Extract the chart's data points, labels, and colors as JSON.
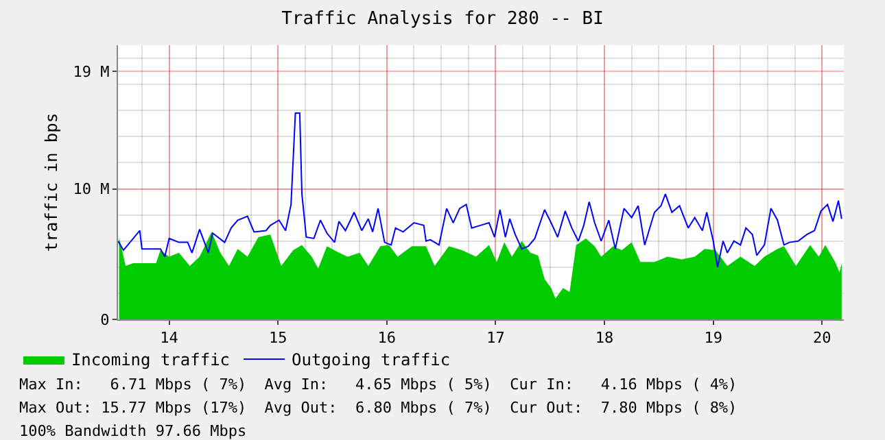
{
  "chart_data": {
    "type": "line",
    "title": "Traffic Analysis for 280 -- BI",
    "ylabel": "traffic in bps",
    "series": [
      {
        "name": "Incoming traffic",
        "type": "area",
        "color": "#00cc00",
        "x": [
          13.54,
          13.6,
          13.67,
          13.88,
          13.92,
          14.0,
          14.09,
          14.19,
          14.28,
          14.39,
          14.47,
          14.55,
          14.63,
          14.72,
          14.82,
          14.93,
          15.03,
          15.14,
          15.22,
          15.31,
          15.37,
          15.45,
          15.56,
          15.64,
          15.75,
          15.83,
          15.94,
          16.02,
          16.1,
          16.23,
          16.36,
          16.44,
          16.57,
          16.69,
          16.82,
          16.94,
          17.01,
          17.08,
          17.15,
          17.24,
          17.32,
          17.39,
          17.45,
          17.51,
          17.55,
          17.62,
          17.68,
          17.74,
          17.83,
          17.91,
          17.97,
          18.08,
          18.16,
          18.25,
          18.33,
          18.46,
          18.58,
          18.71,
          18.83,
          18.92,
          19.02,
          19.13,
          19.25,
          19.38,
          19.47,
          19.59,
          19.65,
          19.76,
          19.89,
          19.97,
          20.03,
          20.12,
          20.16,
          20.18
        ],
        "values": [
          6.3,
          4.1,
          4.3,
          4.3,
          5.3,
          4.8,
          5.1,
          4.1,
          4.8,
          6.7,
          5.1,
          4.1,
          5.4,
          4.8,
          6.3,
          6.5,
          4.1,
          5.3,
          5.7,
          4.8,
          3.9,
          5.6,
          5.1,
          4.8,
          5.1,
          4.1,
          5.6,
          5.7,
          4.8,
          5.6,
          5.6,
          4.1,
          5.6,
          5.3,
          4.8,
          5.7,
          4.4,
          5.9,
          4.8,
          6.0,
          5.1,
          4.9,
          3.1,
          2.4,
          1.6,
          2.4,
          2.1,
          5.7,
          6.2,
          5.6,
          4.8,
          5.6,
          5.3,
          5.9,
          4.4,
          4.4,
          4.8,
          4.6,
          4.8,
          5.4,
          5.3,
          4.1,
          4.8,
          4.1,
          4.8,
          5.4,
          5.6,
          4.1,
          5.7,
          4.8,
          5.7,
          4.4,
          3.6,
          4.3
        ]
      },
      {
        "name": "Outgoing traffic",
        "color": "#0000ff",
        "x": [
          13.53,
          13.58,
          13.73,
          13.75,
          13.92,
          13.96,
          14.0,
          14.09,
          14.17,
          14.21,
          14.28,
          14.36,
          14.4,
          14.51,
          14.57,
          14.63,
          14.72,
          14.78,
          14.89,
          14.93,
          15.01,
          15.07,
          15.12,
          15.16,
          15.2,
          15.22,
          15.26,
          15.33,
          15.39,
          15.45,
          15.52,
          15.56,
          15.62,
          15.7,
          15.77,
          15.83,
          15.87,
          15.92,
          15.98,
          16.04,
          16.08,
          16.15,
          16.25,
          16.34,
          16.36,
          16.4,
          16.48,
          16.55,
          16.61,
          16.67,
          16.73,
          16.78,
          16.86,
          16.94,
          16.99,
          17.04,
          17.09,
          17.13,
          17.18,
          17.24,
          17.3,
          17.36,
          17.45,
          17.51,
          17.57,
          17.64,
          17.7,
          17.76,
          17.81,
          17.86,
          17.91,
          17.97,
          18.04,
          18.1,
          18.18,
          18.25,
          18.31,
          18.37,
          18.46,
          18.52,
          18.56,
          18.62,
          18.69,
          18.77,
          18.83,
          18.9,
          18.94,
          19.0,
          19.04,
          19.09,
          19.13,
          19.19,
          19.25,
          19.3,
          19.36,
          19.4,
          19.47,
          19.53,
          19.59,
          19.65,
          19.7,
          19.78,
          19.86,
          19.93,
          19.99,
          20.05,
          20.1,
          20.15,
          20.18
        ],
        "values": [
          6.0,
          5.3,
          6.8,
          5.4,
          5.4,
          4.8,
          6.2,
          5.9,
          5.9,
          5.1,
          6.9,
          5.1,
          6.6,
          5.9,
          7.0,
          7.6,
          7.9,
          6.7,
          6.8,
          7.2,
          7.6,
          6.8,
          8.8,
          15.8,
          15.8,
          9.6,
          6.3,
          6.2,
          7.6,
          6.6,
          5.9,
          7.5,
          6.8,
          8.2,
          6.8,
          7.7,
          6.7,
          8.5,
          5.9,
          5.7,
          7.0,
          6.7,
          7.4,
          7.2,
          6.0,
          6.1,
          5.7,
          8.5,
          7.4,
          8.5,
          8.8,
          7.0,
          7.2,
          7.4,
          6.3,
          8.4,
          6.3,
          7.7,
          6.5,
          5.4,
          5.6,
          6.2,
          8.4,
          7.4,
          6.3,
          8.3,
          7.0,
          6.0,
          7.2,
          9.0,
          7.4,
          6.0,
          7.6,
          5.4,
          8.5,
          7.8,
          8.7,
          5.7,
          8.2,
          8.7,
          9.6,
          8.2,
          8.7,
          7.0,
          7.8,
          6.8,
          8.2,
          6.0,
          4.0,
          6.0,
          5.1,
          6.0,
          5.7,
          7.0,
          6.5,
          4.9,
          5.7,
          8.5,
          7.6,
          5.7,
          5.9,
          6.0,
          6.5,
          6.8,
          8.3,
          8.8,
          7.5,
          9.1,
          7.7
        ]
      }
    ],
    "xlim": [
      13.53,
      20.2
    ],
    "xticks": [
      14,
      15,
      16,
      17,
      18,
      19,
      20
    ],
    "ylim": [
      0,
      21
    ],
    "yticks": [
      0,
      {
        "value": 10,
        "label": "10 M"
      },
      {
        "value": 19,
        "label": "19 M"
      }
    ],
    "grid": true,
    "legend": "bottom",
    "marker": "none",
    "line_style": "solid",
    "annotations": [
      "Max In:   6.71 Mbps ( 7%)  Avg In:   4.65 Mbps ( 5%)  Cur In:   4.16 Mbps ( 4%)",
      "Max Out: 15.77 Mbps (17%)  Avg Out:  6.80 Mbps ( 7%)  Cur Out:  7.80 Mbps ( 8%)",
      "100% Bandwidth 97.66 Mbps"
    ]
  }
}
